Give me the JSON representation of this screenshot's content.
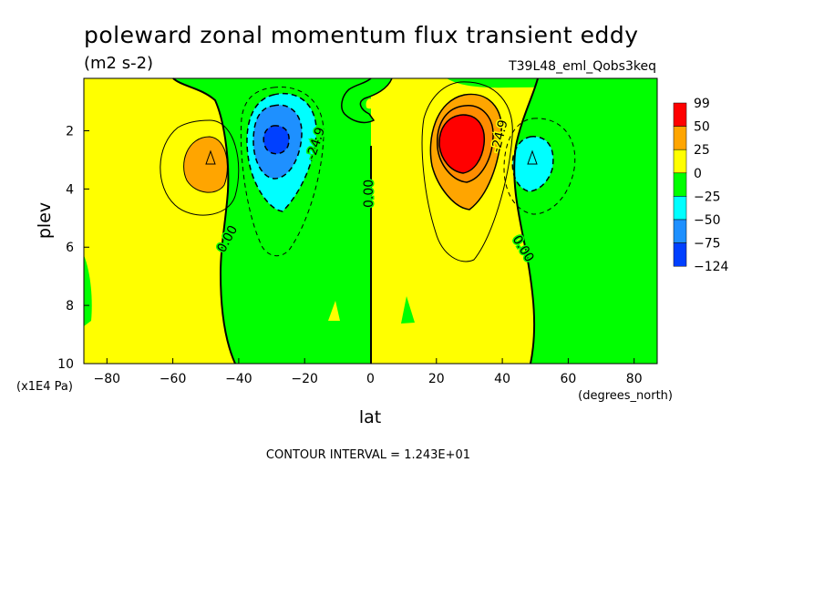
{
  "chart_data": {
    "type": "contour",
    "title": "poleward zonal momentum flux transient eddy",
    "units": "(m2 s-2)",
    "experiment": "T39L48_eml_Qobs3keq",
    "xlabel": "lat",
    "xunits": "(degrees_north)",
    "ylabel": "plev",
    "yunits": "(x1E4 Pa)",
    "xlim": [
      -87,
      87
    ],
    "ylim": [
      10,
      0.2
    ],
    "xticks": [
      -80,
      -60,
      -40,
      -20,
      0,
      20,
      40,
      60,
      80
    ],
    "yticks": [
      2,
      4,
      6,
      8,
      10
    ],
    "contour_interval_text": "CONTOUR INTERVAL = 1.243E+01",
    "contour_labels": [
      "0.00",
      "-24.9",
      "0.00",
      "-24.9",
      "0.00"
    ],
    "colorbar": {
      "labels": [
        "99",
        "50",
        "25",
        "0",
        "-25",
        "-50",
        "-75",
        "-124"
      ],
      "colors": [
        "#ff0000",
        "#ffa500",
        "#ffff00",
        "#00ff00",
        "#00ffff",
        "#1e90ff",
        "#0040ff"
      ]
    },
    "colors": {
      "red": "#ff0000",
      "orange": "#ffa500",
      "yellow": "#ffff00",
      "green": "#00ff00",
      "cyan": "#00ffff",
      "midblue": "#1e90ff",
      "blue": "#0040ff"
    },
    "features": [
      {
        "name": "sh-positive-max",
        "lat": -50,
        "plev": 3.0,
        "value": 30
      },
      {
        "name": "sh-negative-min",
        "lat": -30,
        "plev": 2.3,
        "value": -90
      },
      {
        "name": "nh-positive-max",
        "lat": 30,
        "plev": 2.3,
        "value": 90
      },
      {
        "name": "nh-negative-min",
        "lat": 50,
        "plev": 3.0,
        "value": -55
      }
    ]
  }
}
